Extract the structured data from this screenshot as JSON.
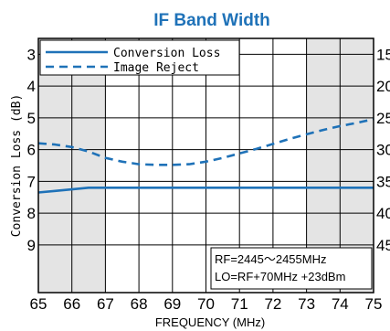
{
  "chart_data": {
    "type": "line",
    "title": "IF Band Width",
    "xlabel": "FREQUENCY (MHz)",
    "ylabel_left": "Conversion Loss (dB)",
    "xlim": [
      65,
      75
    ],
    "x_ticks": [
      "65",
      "66",
      "67",
      "68",
      "69",
      "70",
      "71",
      "72",
      "73",
      "74",
      "75"
    ],
    "ylim_left": [
      2.5,
      10.5
    ],
    "y_left_ticks": [
      "3",
      "4",
      "5",
      "6",
      "7",
      "8",
      "9"
    ],
    "y_left_values": [
      3,
      4,
      5,
      6,
      7,
      8,
      9
    ],
    "ylim_right": [
      12.5,
      52.5
    ],
    "y_right_ticks": [
      "15",
      "20",
      "25",
      "30",
      "35",
      "40",
      "45"
    ],
    "y_right_values": [
      15,
      20,
      25,
      30,
      35,
      40,
      45
    ],
    "shaded_x_ranges": [
      [
        65,
        67
      ],
      [
        73,
        75
      ]
    ],
    "legend": {
      "position": "top-left"
    },
    "series": [
      {
        "name": "Conversion Loss",
        "axis": "left",
        "style": "solid",
        "color": "#1f72b8",
        "x": [
          65,
          65.5,
          66,
          66.5,
          67,
          68,
          69,
          70,
          71,
          72,
          73,
          74,
          74.5,
          75
        ],
        "y": [
          7.35,
          7.3,
          7.25,
          7.2,
          7.2,
          7.2,
          7.2,
          7.2,
          7.2,
          7.2,
          7.2,
          7.2,
          7.2,
          7.2
        ]
      },
      {
        "name": "Image Reject",
        "axis": "right",
        "style": "dashed",
        "color": "#1f72b8",
        "x": [
          65,
          65.5,
          66,
          66.5,
          67,
          67.5,
          68,
          68.5,
          69,
          69.5,
          70,
          70.5,
          71,
          71.5,
          72,
          72.5,
          73,
          73.5,
          74,
          74.5,
          75
        ],
        "y": [
          29,
          29.2,
          29.6,
          30.3,
          31.3,
          31.9,
          32.3,
          32.4,
          32.4,
          32.3,
          31.9,
          31.3,
          30.6,
          29.9,
          29.1,
          28.3,
          27.6,
          26.9,
          26.3,
          25.8,
          25.2
        ]
      }
    ],
    "annotation": {
      "line1": "RF=2445～2455MHz",
      "line2": "LO=RF+70MHz +23dBm",
      "position": "bottom-right"
    }
  }
}
